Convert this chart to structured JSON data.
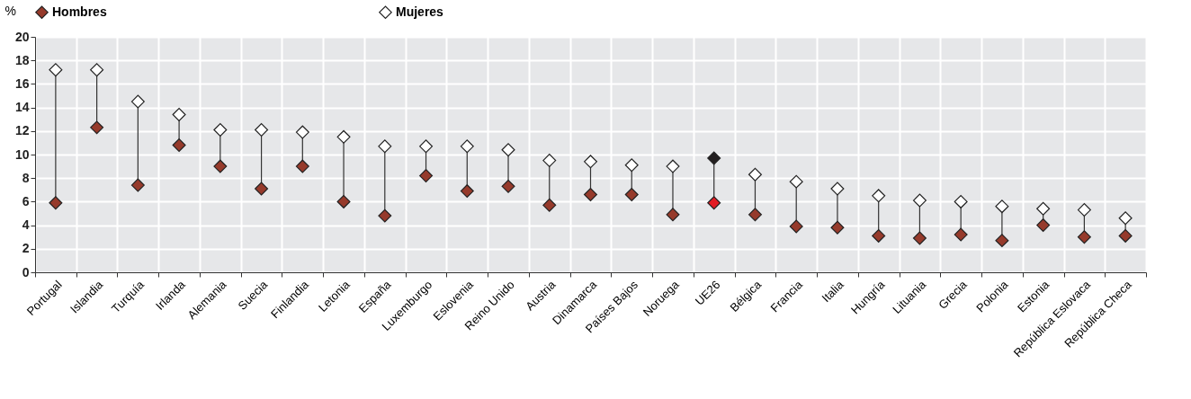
{
  "chart_data": {
    "type": "scatter",
    "ylabel": "%",
    "categories": [
      "Portugal",
      "Islandia",
      "Turquía",
      "Irlanda",
      "Alemania",
      "Suecia",
      "Finlandia",
      "Letonia",
      "España",
      "Luxemburgo",
      "Eslovenia",
      "Reino Unido",
      "Austria",
      "Dinamarca",
      "Países Bajos",
      "Noruega",
      "UE26",
      "Bélgica",
      "Francia",
      "Italia",
      "Hungría",
      "Lituania",
      "Grecia",
      "Polonia",
      "Estonia",
      "República Eslovaca",
      "República Checa"
    ],
    "series": [
      {
        "name": "Hombres",
        "color": "#963a2b",
        "colors": [
          "#963a2b",
          "#963a2b",
          "#963a2b",
          "#963a2b",
          "#963a2b",
          "#963a2b",
          "#963a2b",
          "#963a2b",
          "#963a2b",
          "#963a2b",
          "#963a2b",
          "#963a2b",
          "#963a2b",
          "#963a2b",
          "#963a2b",
          "#963a2b",
          "#e31b23",
          "#963a2b",
          "#963a2b",
          "#963a2b",
          "#963a2b",
          "#963a2b",
          "#963a2b",
          "#963a2b",
          "#963a2b",
          "#963a2b",
          "#963a2b"
        ],
        "values": [
          5.9,
          12.3,
          7.4,
          10.8,
          9.0,
          7.1,
          9.0,
          6.0,
          4.8,
          8.2,
          6.9,
          7.3,
          5.7,
          6.6,
          6.6,
          4.9,
          5.9,
          4.9,
          3.9,
          3.8,
          3.1,
          2.9,
          3.2,
          2.7,
          4.0,
          3.0,
          3.1
        ]
      },
      {
        "name": "Mujeres",
        "color": "#ffffff",
        "colors": [
          "#ffffff",
          "#ffffff",
          "#ffffff",
          "#ffffff",
          "#ffffff",
          "#ffffff",
          "#ffffff",
          "#ffffff",
          "#ffffff",
          "#ffffff",
          "#ffffff",
          "#ffffff",
          "#ffffff",
          "#ffffff",
          "#ffffff",
          "#ffffff",
          "#231f20",
          "#ffffff",
          "#ffffff",
          "#ffffff",
          "#ffffff",
          "#ffffff",
          "#ffffff",
          "#ffffff",
          "#ffffff",
          "#ffffff",
          "#ffffff"
        ],
        "values": [
          17.2,
          17.2,
          14.5,
          13.4,
          12.1,
          12.1,
          11.9,
          11.5,
          10.7,
          10.7,
          10.7,
          10.4,
          9.5,
          9.4,
          9.1,
          9.0,
          9.7,
          8.3,
          7.7,
          7.1,
          6.5,
          6.1,
          6.0,
          5.6,
          5.4,
          5.3,
          4.6
        ]
      }
    ],
    "ylim": [
      0,
      20
    ],
    "yticks": [
      0,
      2,
      4,
      6,
      8,
      10,
      12,
      14,
      16,
      18,
      20
    ],
    "grid": true,
    "legend": "top",
    "marker": "diamond"
  }
}
